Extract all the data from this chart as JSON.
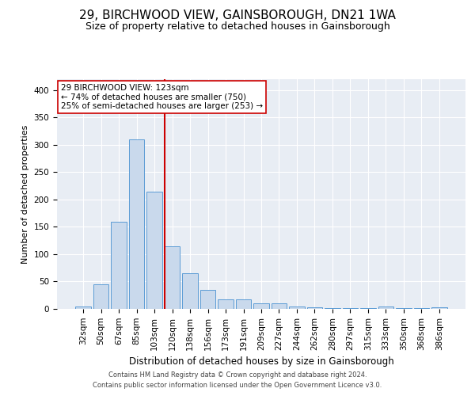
{
  "title": "29, BIRCHWOOD VIEW, GAINSBOROUGH, DN21 1WA",
  "subtitle": "Size of property relative to detached houses in Gainsborough",
  "xlabel": "Distribution of detached houses by size in Gainsborough",
  "ylabel": "Number of detached properties",
  "footnote1": "Contains HM Land Registry data © Crown copyright and database right 2024.",
  "footnote2": "Contains public sector information licensed under the Open Government Licence v3.0.",
  "annotation_line1": "29 BIRCHWOOD VIEW: 123sqm",
  "annotation_line2": "← 74% of detached houses are smaller (750)",
  "annotation_line3": "25% of semi-detached houses are larger (253) →",
  "bar_color": "#c9d9ec",
  "bar_edge_color": "#5b9bd5",
  "vline_color": "#cc0000",
  "background_color": "#e8edf4",
  "categories": [
    "32sqm",
    "50sqm",
    "67sqm",
    "85sqm",
    "103sqm",
    "120sqm",
    "138sqm",
    "156sqm",
    "173sqm",
    "191sqm",
    "209sqm",
    "227sqm",
    "244sqm",
    "262sqm",
    "280sqm",
    "297sqm",
    "315sqm",
    "333sqm",
    "350sqm",
    "368sqm",
    "386sqm"
  ],
  "values": [
    5,
    45,
    160,
    310,
    215,
    115,
    65,
    35,
    17,
    17,
    10,
    10,
    5,
    3,
    2,
    2,
    1,
    4,
    1,
    1,
    3
  ],
  "ylim": [
    0,
    420
  ],
  "yticks": [
    0,
    50,
    100,
    150,
    200,
    250,
    300,
    350,
    400
  ],
  "vline_x_index": 5,
  "grid_color": "#ffffff",
  "title_fontsize": 11,
  "subtitle_fontsize": 9,
  "annotation_fontsize": 7.5,
  "tick_fontsize": 7.5,
  "ylabel_fontsize": 8,
  "xlabel_fontsize": 8.5
}
